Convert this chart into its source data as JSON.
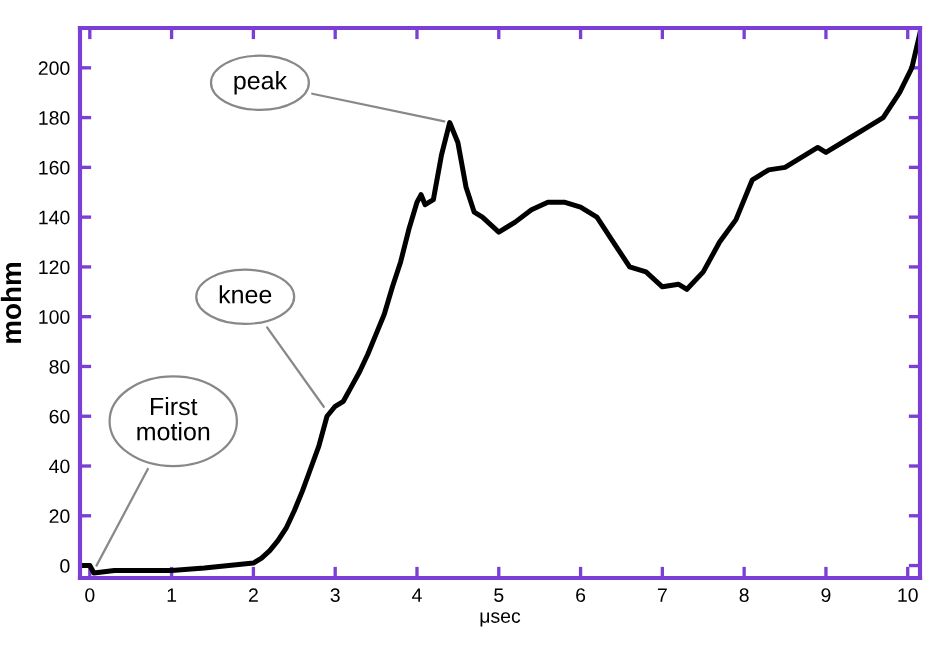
{
  "chart_data": {
    "type": "line",
    "xlabel": "μsec",
    "ylabel": "mohm",
    "x": [
      -0.12,
      0.0,
      0.05,
      0.3,
      0.6,
      1.0,
      1.4,
      1.7,
      2.0,
      2.1,
      2.2,
      2.3,
      2.4,
      2.5,
      2.6,
      2.7,
      2.8,
      2.9,
      3.0,
      3.1,
      3.2,
      3.3,
      3.4,
      3.5,
      3.6,
      3.7,
      3.8,
      3.9,
      4.0,
      4.05,
      4.1,
      4.2,
      4.3,
      4.4,
      4.5,
      4.6,
      4.7,
      4.8,
      4.9,
      5.0,
      5.2,
      5.4,
      5.6,
      5.8,
      6.0,
      6.2,
      6.4,
      6.6,
      6.8,
      7.0,
      7.2,
      7.3,
      7.5,
      7.7,
      7.9,
      8.1,
      8.3,
      8.5,
      8.7,
      8.9,
      9.0,
      9.3,
      9.5,
      9.7,
      9.9,
      10.05,
      10.15
    ],
    "series": [
      {
        "color": "#000000",
        "values": [
          0,
          0,
          -3,
          -2,
          -2,
          -2,
          -1,
          0,
          1,
          3,
          6,
          10,
          15,
          22,
          30,
          39,
          48,
          60,
          64,
          66,
          72,
          78,
          85,
          93,
          101,
          112,
          122,
          135,
          146,
          149,
          145,
          147,
          165,
          178,
          170,
          152,
          142,
          140,
          137,
          134,
          138,
          143,
          146,
          146,
          144,
          140,
          130,
          120,
          118,
          112,
          113,
          111,
          118,
          130,
          139,
          155,
          159,
          160,
          164,
          168,
          166,
          172,
          176,
          180,
          190,
          200,
          214
        ]
      }
    ],
    "xlim": [
      -0.12,
      10.15
    ],
    "ylim": [
      -5,
      216
    ],
    "xticks": [
      0,
      1,
      2,
      3,
      4,
      5,
      6,
      7,
      8,
      9,
      10
    ],
    "yticks": [
      0,
      20,
      40,
      60,
      80,
      100,
      120,
      140,
      160,
      180,
      200
    ],
    "grid": false,
    "legend": false,
    "marker": "none",
    "line_style": "solid",
    "annotations": [
      {
        "text": "First\nmotion",
        "x": 0.05,
        "y": -2
      },
      {
        "text": "knee",
        "x": 2.9,
        "y": 62
      },
      {
        "text": "peak",
        "x": 4.4,
        "y": 178
      }
    ]
  }
}
